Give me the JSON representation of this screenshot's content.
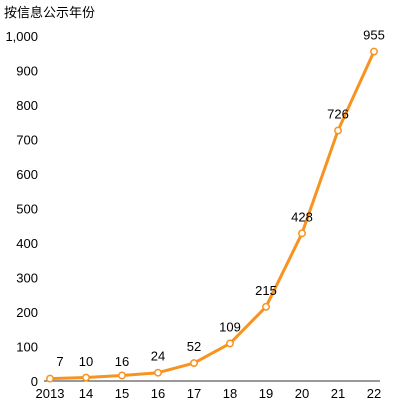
{
  "chart_data": {
    "type": "line",
    "title": "",
    "subtitle": "按信息公示年份",
    "xlabel": "",
    "ylabel": "",
    "categories": [
      "2013",
      "14",
      "15",
      "16",
      "17",
      "18",
      "19",
      "20",
      "21",
      "22"
    ],
    "series": [
      {
        "values": [
          7,
          10,
          16,
          24,
          52,
          109,
          215,
          428,
          726,
          955
        ]
      }
    ],
    "data_labels": [
      "7",
      "10",
      "16",
      "24",
      "52",
      "109",
      "215",
      "428",
      "726",
      "955"
    ],
    "ylim": [
      0,
      1000
    ],
    "yticks": [
      0,
      100,
      200,
      300,
      400,
      500,
      600,
      700,
      800,
      900,
      1000
    ],
    "ytick_labels": [
      "0",
      "100",
      "200",
      "300",
      "400",
      "500",
      "600",
      "700",
      "800",
      "900",
      "1,000"
    ],
    "grid": false,
    "legend": "none",
    "colors": {
      "line": "#F7931E",
      "marker_fill": "#ffffff"
    }
  }
}
